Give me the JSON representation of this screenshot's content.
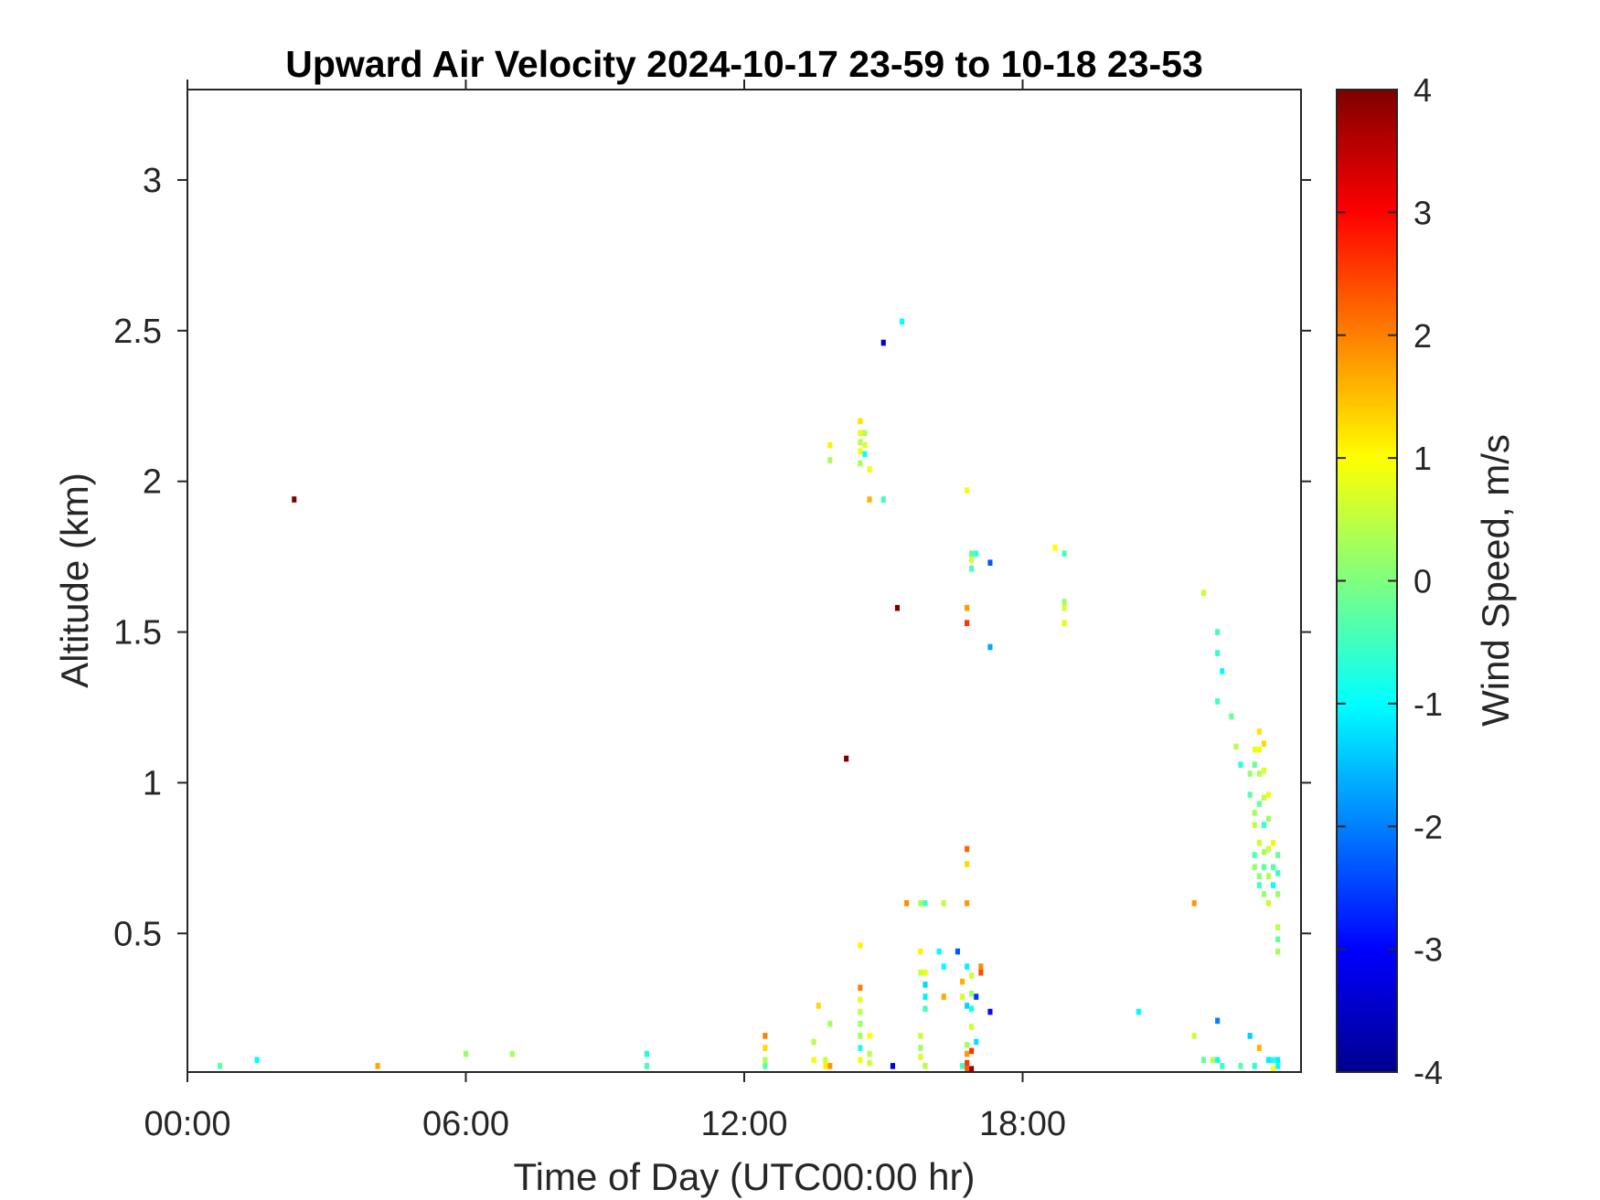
{
  "chart_data": {
    "type": "heatmap",
    "title": "Upward Air Velocity 2024-10-17 23-59 to 10-18 23-53",
    "xlabel": "Time of Day (UTC00:00 hr)",
    "ylabel": "Altitude (km)",
    "colorbar_label": "Wind Speed, m/s",
    "xlim": [
      0,
      24
    ],
    "ylim": [
      0.04,
      3.3
    ],
    "clim": [
      -4,
      4
    ],
    "colormap": "jet",
    "grid": false,
    "x_ticks": [
      {
        "value": 0,
        "label": "00:00"
      },
      {
        "value": 6,
        "label": "06:00"
      },
      {
        "value": 12,
        "label": "12:00"
      },
      {
        "value": 18,
        "label": "18:00"
      }
    ],
    "y_ticks": [
      {
        "value": 0.5,
        "label": "0.5"
      },
      {
        "value": 1,
        "label": "1"
      },
      {
        "value": 1.5,
        "label": "1.5"
      },
      {
        "value": 2,
        "label": "2"
      },
      {
        "value": 2.5,
        "label": "2.5"
      },
      {
        "value": 3,
        "label": "3"
      }
    ],
    "colorbar_ticks": [
      {
        "value": 4,
        "label": "4"
      },
      {
        "value": 3,
        "label": "3"
      },
      {
        "value": 2,
        "label": "2"
      },
      {
        "value": 1,
        "label": "1"
      },
      {
        "value": 0,
        "label": "0"
      },
      {
        "value": -1,
        "label": "-1"
      },
      {
        "value": -2,
        "label": "-2"
      },
      {
        "value": -3,
        "label": "-3"
      },
      {
        "value": -4,
        "label": "-4"
      }
    ],
    "cell_width_hr": 0.1,
    "cell_height_km": 0.02,
    "points": [
      [
        2.3,
        1.94,
        4
      ],
      [
        0.7,
        0.06,
        -0.3
      ],
      [
        1.5,
        0.08,
        -1.0
      ],
      [
        4.1,
        0.06,
        1.7
      ],
      [
        6.0,
        0.1,
        0.2
      ],
      [
        7.0,
        0.1,
        0.3
      ],
      [
        9.9,
        0.1,
        -0.8
      ],
      [
        9.9,
        0.06,
        -0.5
      ],
      [
        12.45,
        0.16,
        2.0
      ],
      [
        12.45,
        0.12,
        1.3
      ],
      [
        12.45,
        0.08,
        0.4
      ],
      [
        12.45,
        0.06,
        -0.3
      ],
      [
        13.5,
        0.14,
        0.4
      ],
      [
        13.5,
        0.08,
        0.9
      ],
      [
        13.75,
        0.08,
        0.6
      ],
      [
        13.75,
        0.06,
        1.1
      ],
      [
        13.85,
        0.06,
        1.8
      ],
      [
        13.85,
        0.2,
        0.3
      ],
      [
        13.85,
        2.12,
        1.1
      ],
      [
        13.85,
        2.07,
        0.3
      ],
      [
        13.6,
        0.26,
        1.3
      ],
      [
        14.2,
        1.08,
        4
      ],
      [
        14.5,
        2.2,
        1.2
      ],
      [
        14.5,
        2.16,
        0.8
      ],
      [
        14.5,
        2.13,
        0.4
      ],
      [
        14.5,
        2.1,
        0.9
      ],
      [
        14.5,
        2.06,
        0.3
      ],
      [
        14.6,
        2.16,
        0.4
      ],
      [
        14.6,
        2.12,
        0.7
      ],
      [
        14.6,
        2.09,
        -0.9
      ],
      [
        14.7,
        2.04,
        0.9
      ],
      [
        14.7,
        1.94,
        1.6
      ],
      [
        14.5,
        0.46,
        1.1
      ],
      [
        14.5,
        0.32,
        2.0
      ],
      [
        14.5,
        0.28,
        0.8
      ],
      [
        14.5,
        0.24,
        0.5
      ],
      [
        14.5,
        0.2,
        0.2
      ],
      [
        14.5,
        0.16,
        0.3
      ],
      [
        14.5,
        0.12,
        -0.8
      ],
      [
        14.5,
        0.08,
        0.9
      ],
      [
        14.7,
        0.16,
        1.0
      ],
      [
        14.7,
        0.1,
        0.4
      ],
      [
        14.7,
        0.07,
        0.6
      ],
      [
        15.0,
        1.94,
        -0.5
      ],
      [
        15.0,
        2.46,
        -3.3
      ],
      [
        15.4,
        2.53,
        -1.0
      ],
      [
        15.3,
        1.58,
        4
      ],
      [
        15.2,
        0.06,
        -3.3
      ],
      [
        15.5,
        0.6,
        1.9
      ],
      [
        15.8,
        0.6,
        0.3
      ],
      [
        15.9,
        0.6,
        -0.5
      ],
      [
        16.3,
        0.6,
        0.5
      ],
      [
        16.8,
        0.6,
        1.8
      ],
      [
        15.8,
        0.44,
        1.1
      ],
      [
        15.8,
        0.37,
        0.6
      ],
      [
        15.9,
        0.37,
        0.8
      ],
      [
        15.9,
        0.33,
        -1.3
      ],
      [
        15.9,
        0.29,
        -1.1
      ],
      [
        15.9,
        0.25,
        -0.5
      ],
      [
        15.8,
        0.16,
        0.6
      ],
      [
        15.8,
        0.12,
        0.2
      ],
      [
        15.8,
        0.09,
        0.7
      ],
      [
        15.9,
        0.06,
        0.4
      ],
      [
        16.2,
        0.44,
        -1.0
      ],
      [
        16.3,
        0.39,
        -1.0
      ],
      [
        16.3,
        0.29,
        1.7
      ],
      [
        16.6,
        0.44,
        -2.3
      ],
      [
        16.7,
        0.34,
        1.6
      ],
      [
        16.7,
        0.29,
        0.7
      ],
      [
        16.8,
        0.39,
        -1.1
      ],
      [
        16.8,
        0.26,
        -1.3
      ],
      [
        16.8,
        0.13,
        0.3
      ],
      [
        16.8,
        0.1,
        1.8
      ],
      [
        16.8,
        0.07,
        2.6
      ],
      [
        16.7,
        0.06,
        -0.5
      ],
      [
        16.8,
        0.05,
        2.3
      ],
      [
        16.9,
        0.36,
        0.6
      ],
      [
        16.9,
        0.3,
        0.2
      ],
      [
        16.9,
        0.25,
        -0.8
      ],
      [
        16.9,
        0.19,
        0.6
      ],
      [
        16.9,
        0.11,
        2.6
      ],
      [
        16.9,
        0.05,
        3.8
      ],
      [
        17.0,
        0.29,
        -2.6
      ],
      [
        17.0,
        0.14,
        -1.2
      ],
      [
        17.1,
        0.39,
        1.9
      ],
      [
        17.1,
        0.37,
        2.4
      ],
      [
        16.8,
        0.78,
        2.2
      ],
      [
        16.8,
        0.73,
        1.3
      ],
      [
        16.8,
        1.97,
        0.9
      ],
      [
        16.8,
        1.58,
        1.8
      ],
      [
        16.8,
        1.53,
        2.6
      ],
      [
        16.9,
        1.76,
        -0.3
      ],
      [
        16.9,
        1.74,
        0.6
      ],
      [
        16.9,
        1.71,
        -0.4
      ],
      [
        17.0,
        1.76,
        -0.6
      ],
      [
        17.3,
        1.73,
        -2.3
      ],
      [
        17.3,
        1.45,
        -1.7
      ],
      [
        17.3,
        0.24,
        -2.9
      ],
      [
        18.7,
        1.78,
        1.0
      ],
      [
        18.9,
        1.76,
        -0.5
      ],
      [
        18.9,
        1.6,
        0.2
      ],
      [
        18.9,
        1.58,
        0.7
      ],
      [
        18.9,
        1.53,
        0.8
      ],
      [
        20.5,
        0.24,
        -1.0
      ],
      [
        21.7,
        0.6,
        1.8
      ],
      [
        21.7,
        0.16,
        0.6
      ],
      [
        21.9,
        1.63,
        0.6
      ],
      [
        21.9,
        0.08,
        -0.2
      ],
      [
        22.1,
        0.08,
        0.4
      ],
      [
        22.2,
        1.5,
        -0.5
      ],
      [
        22.2,
        1.43,
        -0.6
      ],
      [
        22.3,
        1.37,
        -1.0
      ],
      [
        22.2,
        1.27,
        -0.5
      ],
      [
        22.2,
        0.21,
        -2.0
      ],
      [
        22.2,
        0.08,
        -0.9
      ],
      [
        22.3,
        0.06,
        -0.5
      ],
      [
        22.5,
        1.22,
        -0.2
      ],
      [
        22.7,
        0.06,
        -0.3
      ],
      [
        22.6,
        1.12,
        0.4
      ],
      [
        22.7,
        1.06,
        -0.7
      ],
      [
        22.9,
        1.03,
        0.2
      ],
      [
        22.9,
        0.96,
        -0.3
      ],
      [
        22.9,
        0.16,
        -1.4
      ],
      [
        23.0,
        0.06,
        -0.7
      ],
      [
        23.0,
        1.11,
        0.8
      ],
      [
        23.0,
        1.06,
        -0.2
      ],
      [
        23.0,
        0.9,
        0.3
      ],
      [
        23.0,
        0.86,
        0.5
      ],
      [
        23.0,
        0.76,
        -0.4
      ],
      [
        23.0,
        0.72,
        0.2
      ],
      [
        23.1,
        1.17,
        1.2
      ],
      [
        23.1,
        1.11,
        0.9
      ],
      [
        23.1,
        1.03,
        0.4
      ],
      [
        23.1,
        0.93,
        -0.2
      ],
      [
        23.1,
        0.8,
        0.6
      ],
      [
        23.1,
        0.69,
        0.1
      ],
      [
        23.1,
        0.66,
        -0.5
      ],
      [
        23.1,
        0.12,
        1.6
      ],
      [
        23.2,
        1.13,
        1.3
      ],
      [
        23.2,
        1.04,
        0.7
      ],
      [
        23.2,
        0.95,
        0.5
      ],
      [
        23.2,
        0.86,
        -0.6
      ],
      [
        23.2,
        0.77,
        0.3
      ],
      [
        23.2,
        0.72,
        -0.3
      ],
      [
        23.2,
        0.63,
        0.2
      ],
      [
        23.3,
        0.96,
        0.9
      ],
      [
        23.3,
        0.88,
        0.2
      ],
      [
        23.3,
        0.78,
        0.6
      ],
      [
        23.3,
        0.69,
        0.4
      ],
      [
        23.3,
        0.6,
        0.6
      ],
      [
        23.3,
        0.08,
        -1.1
      ],
      [
        23.4,
        0.8,
        1.1
      ],
      [
        23.4,
        0.72,
        -0.3
      ],
      [
        23.4,
        0.66,
        -0.9
      ],
      [
        23.4,
        0.08,
        -0.7
      ],
      [
        23.4,
        0.05,
        1.0
      ],
      [
        23.5,
        0.76,
        -0.2
      ],
      [
        23.5,
        0.7,
        -0.6
      ],
      [
        23.5,
        0.63,
        0.2
      ],
      [
        23.5,
        0.52,
        0.5
      ],
      [
        23.5,
        0.48,
        -0.2
      ],
      [
        23.5,
        0.44,
        0.3
      ],
      [
        23.5,
        0.08,
        -1.1
      ],
      [
        23.5,
        0.06,
        -0.9
      ]
    ]
  }
}
